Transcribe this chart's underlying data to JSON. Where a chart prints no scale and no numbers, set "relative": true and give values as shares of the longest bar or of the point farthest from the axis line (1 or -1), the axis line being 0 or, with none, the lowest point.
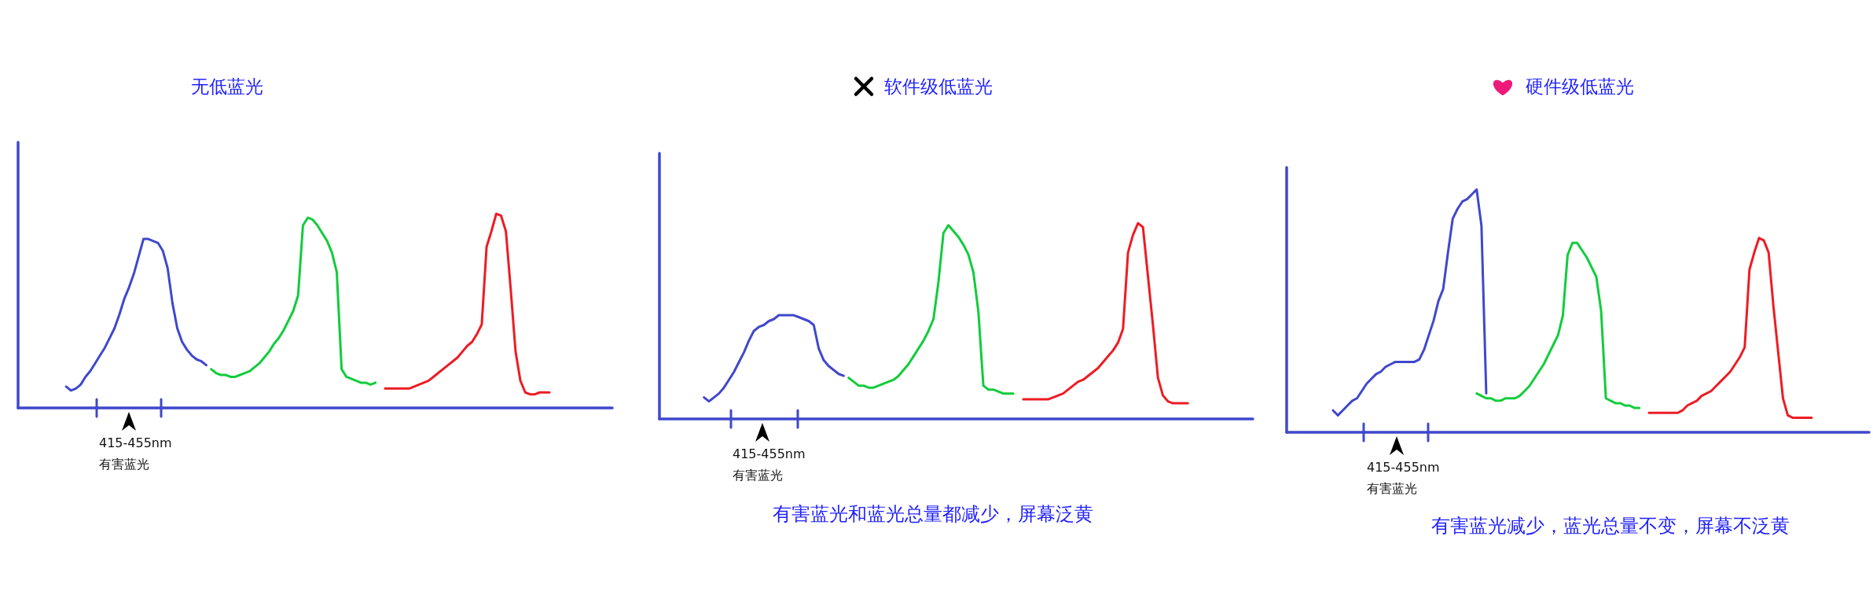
{
  "chart_data": [
    {
      "type": "line",
      "title": "无低蓝光",
      "relative": true,
      "categories": [
        null,
        null,
        null,
        null,
        null,
        null,
        null,
        null,
        null,
        null,
        null,
        null,
        null,
        null,
        null,
        null,
        null,
        null,
        null,
        null,
        null,
        null,
        null,
        null,
        null,
        null,
        null,
        null,
        null,
        null,
        null,
        null,
        null,
        null,
        null,
        null,
        null,
        null,
        null,
        null,
        null,
        null,
        null,
        null,
        null,
        null,
        null,
        null,
        null,
        null,
        null,
        null,
        null,
        null,
        null,
        null,
        null,
        null,
        null,
        null,
        null,
        null,
        null,
        null,
        null,
        null,
        null,
        null,
        null,
        null,
        null,
        null,
        null,
        null,
        null,
        null,
        null,
        null,
        null,
        null,
        null,
        null,
        null,
        null,
        null,
        null,
        null,
        null,
        null,
        null,
        null,
        null,
        null,
        null,
        null,
        null,
        null,
        null,
        null,
        null,
        null,
        null
      ],
      "series": [
        {
          "color": "#3f48cc",
          "values": [
            null,
            0.11,
            0.09,
            0.1,
            0.12,
            0.16,
            0.19,
            0.23,
            0.27,
            0.31,
            0.36,
            0.41,
            0.48,
            0.56,
            0.62,
            0.69,
            0.78,
            0.87,
            0.87,
            0.86,
            0.85,
            0.81,
            0.72,
            0.54,
            0.41,
            0.34,
            0.3,
            0.27,
            0.25,
            0.24,
            0.22,
            null,
            null,
            null,
            null,
            null,
            null,
            null,
            null,
            null,
            null,
            null,
            null,
            null,
            null,
            null,
            null,
            null,
            null,
            null,
            null,
            null,
            null,
            null,
            null,
            null,
            null,
            null,
            null,
            null,
            null,
            null,
            null,
            null,
            null,
            null,
            null,
            null,
            null,
            null,
            null,
            null,
            null,
            null,
            null,
            null,
            null,
            null,
            null,
            null,
            null,
            null,
            null,
            null,
            null,
            null,
            null,
            null,
            null,
            null,
            null,
            null,
            null,
            null,
            null,
            null,
            null,
            null,
            null,
            null,
            null,
            null
          ]
        },
        {
          "color": "#12cc3c",
          "values": [
            null,
            null,
            null,
            null,
            null,
            null,
            null,
            null,
            null,
            null,
            null,
            null,
            null,
            null,
            null,
            null,
            null,
            null,
            null,
            null,
            null,
            null,
            null,
            null,
            null,
            null,
            null,
            null,
            null,
            null,
            null,
            0.2,
            0.18,
            0.17,
            0.17,
            0.16,
            0.16,
            0.17,
            0.18,
            0.19,
            0.21,
            0.23,
            0.26,
            0.29,
            0.33,
            0.36,
            0.4,
            0.45,
            0.5,
            0.58,
            0.94,
            0.98,
            0.97,
            0.94,
            0.9,
            0.86,
            0.8,
            0.7,
            0.2,
            0.16,
            0.15,
            0.14,
            0.13,
            0.13,
            0.12,
            0.13,
            null,
            null,
            null,
            null,
            null,
            null,
            null,
            null,
            null,
            null,
            null,
            null,
            null,
            null,
            null,
            null,
            null,
            null,
            null,
            null,
            null,
            null,
            null,
            null,
            null,
            null,
            null,
            null,
            null,
            null,
            null,
            null,
            null,
            null,
            null,
            null
          ]
        },
        {
          "color": "#ed1c24",
          "values": [
            null,
            null,
            null,
            null,
            null,
            null,
            null,
            null,
            null,
            null,
            null,
            null,
            null,
            null,
            null,
            null,
            null,
            null,
            null,
            null,
            null,
            null,
            null,
            null,
            null,
            null,
            null,
            null,
            null,
            null,
            null,
            null,
            null,
            null,
            null,
            null,
            null,
            null,
            null,
            null,
            null,
            null,
            null,
            null,
            null,
            null,
            null,
            null,
            null,
            null,
            null,
            null,
            null,
            null,
            null,
            null,
            null,
            null,
            null,
            null,
            null,
            null,
            null,
            null,
            null,
            null,
            null,
            0.1,
            0.1,
            0.1,
            0.1,
            0.1,
            0.1,
            0.11,
            0.12,
            0.13,
            0.14,
            0.16,
            0.18,
            0.2,
            0.22,
            0.24,
            0.26,
            0.29,
            0.32,
            0.34,
            0.38,
            0.43,
            0.83,
            0.91,
            1.0,
            0.99,
            0.91,
            0.61,
            0.29,
            0.14,
            0.08,
            0.07,
            0.07,
            0.08,
            0.08,
            0.08
          ]
        }
      ],
      "annotations": [
        "415-455nm\n有害蓝光"
      ]
    },
    {
      "type": "line",
      "title": "软件级低蓝光",
      "relative": true,
      "categories": [
        null,
        null,
        null,
        null,
        null,
        null,
        null,
        null,
        null,
        null,
        null,
        null,
        null,
        null,
        null,
        null,
        null,
        null,
        null,
        null,
        null,
        null,
        null,
        null,
        null,
        null,
        null,
        null,
        null,
        null,
        null,
        null,
        null,
        null,
        null,
        null,
        null,
        null,
        null,
        null,
        null,
        null,
        null,
        null,
        null,
        null,
        null,
        null,
        null,
        null,
        null,
        null,
        null,
        null,
        null,
        null,
        null,
        null,
        null,
        null,
        null,
        null,
        null,
        null,
        null,
        null,
        null,
        null,
        null,
        null,
        null,
        null,
        null,
        null,
        null,
        null,
        null,
        null,
        null,
        null,
        null,
        null,
        null,
        null,
        null,
        null,
        null,
        null,
        null,
        null,
        null,
        null,
        null,
        null,
        null,
        null,
        null,
        null,
        null,
        null,
        null,
        null
      ],
      "series": [
        {
          "color": "#3f48cc",
          "values": [
            null,
            null,
            0.11,
            0.09,
            0.11,
            0.13,
            0.16,
            0.2,
            0.24,
            0.29,
            0.34,
            0.4,
            0.45,
            0.47,
            0.48,
            0.5,
            0.51,
            0.53,
            0.53,
            0.53,
            0.53,
            0.52,
            0.51,
            0.5,
            0.48,
            0.36,
            0.3,
            0.27,
            0.25,
            0.23,
            0.22,
            null,
            null,
            null,
            null,
            null,
            null,
            null,
            null,
            null,
            null,
            null,
            null,
            null,
            null,
            null,
            null,
            null,
            null,
            null,
            null,
            null,
            null,
            null,
            null,
            null,
            null,
            null,
            null,
            null,
            null,
            null,
            null,
            null,
            null,
            null,
            null,
            null,
            null,
            null,
            null,
            null,
            null,
            null,
            null,
            null,
            null,
            null,
            null,
            null,
            null,
            null,
            null,
            null,
            null,
            null,
            null,
            null,
            null,
            null,
            null,
            null,
            null,
            null,
            null,
            null,
            null,
            null,
            null,
            null,
            null,
            null
          ]
        },
        {
          "color": "#12cc3c",
          "values": [
            null,
            null,
            null,
            null,
            null,
            null,
            null,
            null,
            null,
            null,
            null,
            null,
            null,
            null,
            null,
            null,
            null,
            null,
            null,
            null,
            null,
            null,
            null,
            null,
            null,
            null,
            null,
            null,
            null,
            null,
            null,
            0.21,
            0.19,
            0.17,
            0.17,
            0.16,
            0.16,
            0.17,
            0.18,
            0.19,
            0.2,
            0.22,
            0.25,
            0.28,
            0.32,
            0.36,
            0.4,
            0.45,
            0.51,
            0.7,
            0.95,
            0.99,
            0.96,
            0.93,
            0.89,
            0.84,
            0.75,
            0.55,
            0.17,
            0.15,
            0.15,
            0.14,
            0.13,
            0.13,
            0.13,
            null,
            null,
            null,
            null,
            null,
            null,
            null,
            null,
            null,
            null,
            null,
            null,
            null,
            null,
            null,
            null,
            null,
            null,
            null,
            null,
            null,
            null,
            null,
            null,
            null,
            null,
            null,
            null,
            null,
            null,
            null,
            null,
            null,
            null,
            null,
            null,
            null
          ]
        },
        {
          "color": "#ed1c24",
          "values": [
            null,
            null,
            null,
            null,
            null,
            null,
            null,
            null,
            null,
            null,
            null,
            null,
            null,
            null,
            null,
            null,
            null,
            null,
            null,
            null,
            null,
            null,
            null,
            null,
            null,
            null,
            null,
            null,
            null,
            null,
            null,
            null,
            null,
            null,
            null,
            null,
            null,
            null,
            null,
            null,
            null,
            null,
            null,
            null,
            null,
            null,
            null,
            null,
            null,
            null,
            null,
            null,
            null,
            null,
            null,
            null,
            null,
            null,
            null,
            null,
            null,
            null,
            null,
            null,
            null,
            null,
            0.1,
            0.1,
            0.1,
            0.1,
            0.1,
            0.1,
            0.11,
            0.12,
            0.13,
            0.15,
            0.17,
            0.19,
            0.2,
            0.22,
            0.24,
            0.26,
            0.29,
            0.32,
            0.35,
            0.39,
            0.46,
            0.85,
            0.94,
            1.0,
            0.98,
            0.73,
            0.48,
            0.21,
            0.12,
            0.09,
            0.08,
            0.08,
            0.08,
            0.08,
            null,
            null
          ]
        }
      ],
      "annotations": [
        "415-455nm\n有害蓝光",
        "有害蓝光和蓝光总量都减少，屏幕泛黄"
      ]
    },
    {
      "type": "line",
      "title": "硬件级低蓝光",
      "relative": true,
      "categories": [
        null,
        null,
        null,
        null,
        null,
        null,
        null,
        null,
        null,
        null,
        null,
        null,
        null,
        null,
        null,
        null,
        null,
        null,
        null,
        null,
        null,
        null,
        null,
        null,
        null,
        null,
        null,
        null,
        null,
        null,
        null,
        null,
        null,
        null,
        null,
        null,
        null,
        null,
        null,
        null,
        null,
        null,
        null,
        null,
        null,
        null,
        null,
        null,
        null,
        null,
        null,
        null,
        null,
        null,
        null,
        null,
        null,
        null,
        null,
        null,
        null,
        null,
        null,
        null,
        null,
        null,
        null,
        null,
        null,
        null,
        null,
        null,
        null,
        null,
        null,
        null,
        null,
        null,
        null,
        null,
        null,
        null,
        null,
        null,
        null,
        null,
        null,
        null,
        null,
        null,
        null,
        null,
        null,
        null,
        null,
        null,
        null,
        null,
        null,
        null,
        null,
        null
      ],
      "series": [
        {
          "color": "#3f48cc",
          "values": [
            null,
            0.09,
            0.07,
            0.09,
            0.11,
            0.13,
            0.14,
            0.17,
            0.2,
            0.22,
            0.24,
            0.25,
            0.27,
            0.28,
            0.29,
            0.29,
            0.29,
            0.29,
            0.29,
            0.3,
            0.34,
            0.4,
            0.46,
            0.54,
            0.59,
            0.74,
            0.88,
            0.92,
            0.95,
            0.96,
            0.98,
            1.0,
            0.85,
            0.16,
            null,
            null,
            null,
            null,
            null,
            null,
            null,
            null,
            null,
            null,
            null,
            null,
            null,
            null,
            null,
            null,
            null,
            null,
            null,
            null,
            null,
            null,
            null,
            null,
            null,
            null,
            null,
            null,
            null,
            null,
            null,
            null,
            null,
            null,
            null,
            null,
            null,
            null,
            null,
            null,
            null,
            null,
            null,
            null,
            null,
            null,
            null,
            null,
            null,
            null,
            null,
            null,
            null,
            null,
            null,
            null,
            null,
            null,
            null,
            null,
            null,
            null,
            null,
            null,
            null,
            null,
            null,
            null
          ]
        },
        {
          "color": "#12cc3c",
          "values": [
            null,
            null,
            null,
            null,
            null,
            null,
            null,
            null,
            null,
            null,
            null,
            null,
            null,
            null,
            null,
            null,
            null,
            null,
            null,
            null,
            null,
            null,
            null,
            null,
            null,
            null,
            null,
            null,
            null,
            null,
            null,
            0.16,
            0.15,
            0.14,
            0.14,
            0.13,
            0.13,
            0.14,
            0.14,
            0.14,
            0.15,
            0.17,
            0.19,
            0.22,
            0.25,
            0.28,
            0.32,
            0.36,
            0.4,
            0.48,
            0.73,
            0.78,
            0.78,
            0.75,
            0.72,
            0.68,
            0.64,
            0.5,
            0.14,
            0.13,
            0.12,
            0.12,
            0.11,
            0.11,
            0.1,
            0.1,
            null,
            null,
            null,
            null,
            null,
            null,
            null,
            null,
            null,
            null,
            null,
            null,
            null,
            null,
            null,
            null,
            null,
            null,
            null,
            null,
            null,
            null,
            null,
            null,
            null,
            null,
            null,
            null,
            null,
            null,
            null,
            null,
            null,
            null,
            null,
            null
          ]
        },
        {
          "color": "#ed1c24",
          "values": [
            null,
            null,
            null,
            null,
            null,
            null,
            null,
            null,
            null,
            null,
            null,
            null,
            null,
            null,
            null,
            null,
            null,
            null,
            null,
            null,
            null,
            null,
            null,
            null,
            null,
            null,
            null,
            null,
            null,
            null,
            null,
            null,
            null,
            null,
            null,
            null,
            null,
            null,
            null,
            null,
            null,
            null,
            null,
            null,
            null,
            null,
            null,
            null,
            null,
            null,
            null,
            null,
            null,
            null,
            null,
            null,
            null,
            null,
            null,
            null,
            null,
            null,
            null,
            null,
            null,
            null,
            null,
            0.08,
            0.08,
            0.08,
            0.08,
            0.08,
            0.08,
            0.08,
            0.09,
            0.11,
            0.12,
            0.13,
            0.15,
            0.16,
            0.17,
            0.19,
            0.21,
            0.23,
            0.25,
            0.28,
            0.31,
            0.35,
            0.67,
            0.74,
            0.8,
            0.79,
            0.74,
            0.52,
            0.33,
            0.14,
            0.07,
            0.06,
            0.06,
            0.06,
            0.06,
            0.06
          ]
        }
      ],
      "annotations": [
        "415-455nm\n有害蓝光",
        "有害蓝光减少，蓝光总量不变，屏幕不泛黄"
      ]
    }
  ]
}
